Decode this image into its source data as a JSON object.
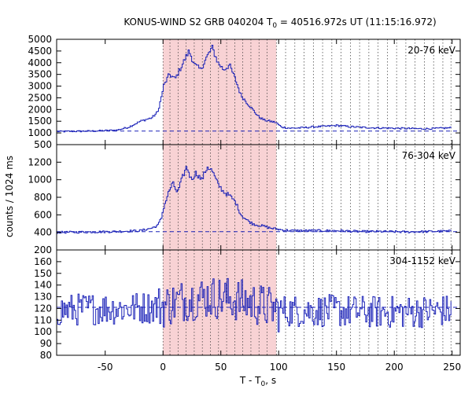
{
  "chart_data": {
    "type": "line",
    "title_main": "KONUS-WIND S2 GRB 040204 T",
    "title_sub": "0",
    "title_tail": " = 40516.972s UT (11:15:16.972)",
    "xlabel_main": "T - T",
    "xlabel_sub": "0",
    "xlabel_tail": ", s",
    "ylabel": "counts / 1024 ms",
    "xlim": [
      -92,
      257
    ],
    "x_ticks": [
      -50,
      0,
      50,
      100,
      150,
      200,
      250
    ],
    "shaded_interval": [
      0,
      98
    ],
    "vertical_dotted_lines": [
      0,
      6,
      13,
      20,
      27,
      34,
      41,
      48,
      55,
      62,
      69,
      76,
      83,
      90,
      98,
      106,
      114,
      122,
      130,
      138,
      146,
      154,
      162,
      170,
      178,
      186,
      194,
      202,
      210,
      218,
      226,
      234,
      242,
      249
    ],
    "panels": [
      {
        "label": "20-76 keV",
        "ylim": [
          500,
          5000
        ],
        "y_ticks": [
          500,
          1000,
          1500,
          2000,
          2500,
          3000,
          3500,
          4000,
          4500,
          5000
        ],
        "background": 1080,
        "anchors": [
          [
            -92,
            1060
          ],
          [
            -60,
            1080
          ],
          [
            -40,
            1120
          ],
          [
            -30,
            1250
          ],
          [
            -20,
            1500
          ],
          [
            -10,
            1650
          ],
          [
            -5,
            1900
          ],
          [
            -2,
            2500
          ],
          [
            0,
            3000
          ],
          [
            5,
            3500
          ],
          [
            10,
            3300
          ],
          [
            15,
            3800
          ],
          [
            18,
            4100
          ],
          [
            22,
            4500
          ],
          [
            27,
            3900
          ],
          [
            32,
            3700
          ],
          [
            37,
            4200
          ],
          [
            42,
            4650
          ],
          [
            47,
            4000
          ],
          [
            52,
            3700
          ],
          [
            57,
            3900
          ],
          [
            62,
            3300
          ],
          [
            67,
            2600
          ],
          [
            72,
            2300
          ],
          [
            77,
            2000
          ],
          [
            82,
            1700
          ],
          [
            87,
            1550
          ],
          [
            92,
            1500
          ],
          [
            97,
            1450
          ],
          [
            102,
            1250
          ],
          [
            110,
            1200
          ],
          [
            120,
            1220
          ],
          [
            130,
            1260
          ],
          [
            140,
            1280
          ],
          [
            150,
            1320
          ],
          [
            160,
            1270
          ],
          [
            170,
            1240
          ],
          [
            180,
            1220
          ],
          [
            190,
            1210
          ],
          [
            200,
            1200
          ],
          [
            210,
            1190
          ],
          [
            220,
            1180
          ],
          [
            230,
            1180
          ],
          [
            240,
            1200
          ],
          [
            249,
            1220
          ]
        ]
      },
      {
        "label": "76-304 keV",
        "ylim": [
          200,
          1400
        ],
        "y_ticks": [
          200,
          400,
          600,
          800,
          1000,
          1200
        ],
        "background": 408,
        "anchors": [
          [
            -92,
            400
          ],
          [
            -60,
            405
          ],
          [
            -40,
            410
          ],
          [
            -20,
            420
          ],
          [
            -10,
            450
          ],
          [
            -5,
            480
          ],
          [
            -2,
            560
          ],
          [
            0,
            680
          ],
          [
            5,
            880
          ],
          [
            8,
            960
          ],
          [
            12,
            850
          ],
          [
            17,
            1050
          ],
          [
            20,
            1150
          ],
          [
            24,
            1000
          ],
          [
            28,
            1080
          ],
          [
            33,
            1000
          ],
          [
            38,
            1150
          ],
          [
            42,
            1100
          ],
          [
            47,
            950
          ],
          [
            52,
            860
          ],
          [
            57,
            820
          ],
          [
            62,
            750
          ],
          [
            67,
            600
          ],
          [
            72,
            540
          ],
          [
            77,
            500
          ],
          [
            82,
            480
          ],
          [
            87,
            470
          ],
          [
            92,
            450
          ],
          [
            97,
            440
          ],
          [
            102,
            430
          ],
          [
            110,
            420
          ],
          [
            130,
            420
          ],
          [
            150,
            420
          ],
          [
            170,
            410
          ],
          [
            190,
            410
          ],
          [
            210,
            405
          ],
          [
            230,
            410
          ],
          [
            249,
            415
          ]
        ]
      },
      {
        "label": "304-1152 keV",
        "ylim": [
          80,
          170
        ],
        "y_ticks": [
          80,
          90,
          100,
          110,
          120,
          130,
          140,
          150,
          160
        ],
        "background": 121,
        "anchors": [
          [
            -92,
            118
          ],
          [
            -60,
            120
          ],
          [
            -30,
            120
          ],
          [
            0,
            122
          ],
          [
            20,
            128
          ],
          [
            40,
            130
          ],
          [
            60,
            128
          ],
          [
            80,
            124
          ],
          [
            100,
            118
          ],
          [
            120,
            118
          ],
          [
            150,
            118
          ],
          [
            180,
            117
          ],
          [
            210,
            117
          ],
          [
            240,
            118
          ],
          [
            249,
            118
          ]
        ],
        "noise": 14
      }
    ]
  }
}
